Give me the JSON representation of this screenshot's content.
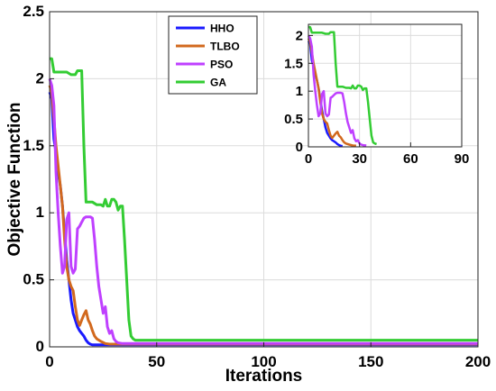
{
  "chart_data": [
    {
      "type": "line",
      "xlabel": "Iterations",
      "ylabel": "Objective Function",
      "xlim": [
        0,
        200
      ],
      "ylim": [
        0,
        2.5
      ],
      "xticks": [
        0,
        50,
        100,
        150,
        200
      ],
      "yticks": [
        0,
        0.5,
        1,
        1.5,
        2,
        2.5
      ],
      "grid": true,
      "legend_position": "top-center",
      "series": [
        {
          "name": "HHO",
          "color": "#1a1aff",
          "points": [
            [
              0,
              1.9
            ],
            [
              1,
              1.85
            ],
            [
              2,
              1.55
            ],
            [
              3,
              1.45
            ],
            [
              4,
              1.3
            ],
            [
              5,
              1.2
            ],
            [
              6,
              1.05
            ],
            [
              7,
              0.85
            ],
            [
              8,
              0.65
            ],
            [
              9,
              0.5
            ],
            [
              10,
              0.35
            ],
            [
              11,
              0.25
            ],
            [
              12,
              0.2
            ],
            [
              13,
              0.15
            ],
            [
              14,
              0.12
            ],
            [
              15,
              0.1
            ],
            [
              16,
              0.08
            ],
            [
              17,
              0.05
            ],
            [
              18,
              0.03
            ],
            [
              19,
              0.02
            ],
            [
              20,
              0.015
            ],
            [
              200,
              0.015
            ]
          ]
        },
        {
          "name": "TLBO",
          "color": "#d2691e",
          "points": [
            [
              0,
              1.95
            ],
            [
              1,
              1.9
            ],
            [
              2,
              1.7
            ],
            [
              3,
              1.5
            ],
            [
              4,
              1.35
            ],
            [
              5,
              1.2
            ],
            [
              6,
              1.05
            ],
            [
              7,
              0.8
            ],
            [
              8,
              0.6
            ],
            [
              9,
              0.5
            ],
            [
              10,
              0.45
            ],
            [
              11,
              0.42
            ],
            [
              12,
              0.3
            ],
            [
              13,
              0.2
            ],
            [
              14,
              0.16
            ],
            [
              15,
              0.2
            ],
            [
              16,
              0.24
            ],
            [
              17,
              0.27
            ],
            [
              18,
              0.2
            ],
            [
              19,
              0.17
            ],
            [
              20,
              0.12
            ],
            [
              21,
              0.08
            ],
            [
              22,
              0.06
            ],
            [
              24,
              0.04
            ],
            [
              26,
              0.025
            ],
            [
              28,
              0.02
            ],
            [
              200,
              0.02
            ]
          ]
        },
        {
          "name": "PSO",
          "color": "#bf40ff",
          "points": [
            [
              0,
              2.0
            ],
            [
              1,
              1.95
            ],
            [
              2,
              1.8
            ],
            [
              3,
              1.3
            ],
            [
              4,
              1.0
            ],
            [
              5,
              0.75
            ],
            [
              6,
              0.55
            ],
            [
              7,
              0.6
            ],
            [
              8,
              0.95
            ],
            [
              9,
              1.0
            ],
            [
              10,
              0.6
            ],
            [
              11,
              0.55
            ],
            [
              12,
              0.58
            ],
            [
              13,
              0.88
            ],
            [
              14,
              0.9
            ],
            [
              15,
              0.93
            ],
            [
              16,
              0.96
            ],
            [
              17,
              0.97
            ],
            [
              18,
              0.97
            ],
            [
              19,
              0.97
            ],
            [
              20,
              0.96
            ],
            [
              21,
              0.8
            ],
            [
              22,
              0.6
            ],
            [
              23,
              0.45
            ],
            [
              24,
              0.35
            ],
            [
              25,
              0.25
            ],
            [
              26,
              0.3
            ],
            [
              27,
              0.15
            ],
            [
              28,
              0.1
            ],
            [
              29,
              0.12
            ],
            [
              30,
              0.06
            ],
            [
              31,
              0.04
            ],
            [
              32,
              0.03
            ],
            [
              34,
              0.025
            ],
            [
              200,
              0.025
            ]
          ]
        },
        {
          "name": "GA",
          "color": "#33cc33",
          "points": [
            [
              0,
              2.15
            ],
            [
              1,
              2.15
            ],
            [
              2,
              2.05
            ],
            [
              3,
              2.05
            ],
            [
              4,
              2.05
            ],
            [
              6,
              2.05
            ],
            [
              8,
              2.05
            ],
            [
              10,
              2.03
            ],
            [
              12,
              2.03
            ],
            [
              13,
              2.06
            ],
            [
              14,
              2.06
            ],
            [
              15,
              2.06
            ],
            [
              16,
              1.5
            ],
            [
              17,
              1.08
            ],
            [
              18,
              1.08
            ],
            [
              20,
              1.08
            ],
            [
              22,
              1.06
            ],
            [
              24,
              1.06
            ],
            [
              25,
              1.05
            ],
            [
              26,
              1.1
            ],
            [
              27,
              1.05
            ],
            [
              28,
              1.05
            ],
            [
              29,
              1.1
            ],
            [
              30,
              1.1
            ],
            [
              31,
              1.08
            ],
            [
              32,
              1.02
            ],
            [
              33,
              1.05
            ],
            [
              34,
              1.05
            ],
            [
              35,
              0.8
            ],
            [
              36,
              0.5
            ],
            [
              37,
              0.2
            ],
            [
              38,
              0.08
            ],
            [
              39,
              0.06
            ],
            [
              40,
              0.05
            ],
            [
              200,
              0.05
            ]
          ]
        }
      ]
    },
    {
      "type": "line",
      "inset": true,
      "xlim": [
        0,
        90
      ],
      "ylim": [
        0,
        2.2
      ],
      "xticks": [
        0,
        30,
        60,
        90
      ],
      "yticks": [
        0,
        0.5,
        1,
        1.5,
        2
      ],
      "grid": true,
      "series_ref": "same as main chart"
    }
  ],
  "legend": {
    "items": [
      {
        "label": "HHO",
        "color": "#1a1aff"
      },
      {
        "label": "TLBO",
        "color": "#d2691e"
      },
      {
        "label": "PSO",
        "color": "#bf40ff"
      },
      {
        "label": "GA",
        "color": "#33cc33"
      }
    ]
  }
}
